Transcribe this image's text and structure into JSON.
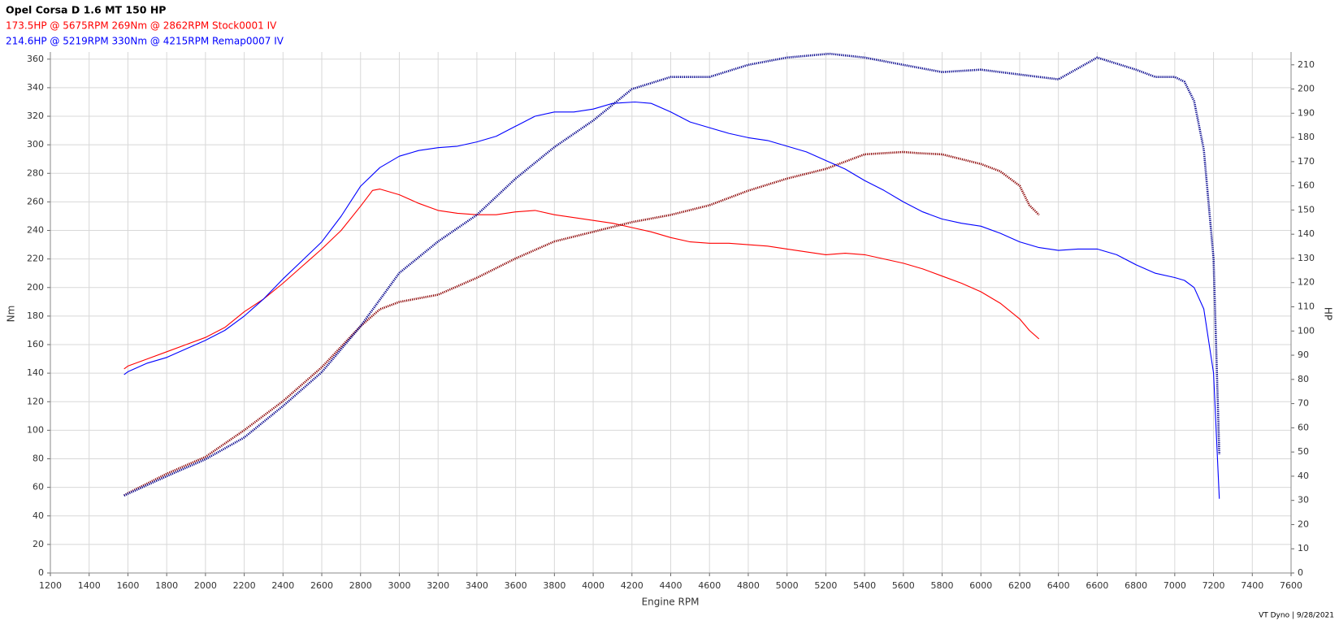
{
  "chart_data": {
    "type": "line",
    "title": "Opel Corsa D 1.6 MT 150 HP",
    "subtitle_lines": [
      {
        "text": "173.5HP @  5675RPM  269Nm @ 2862RPM  Stock0001 IV",
        "color": "#ff0000"
      },
      {
        "text": "214.6HP @  5219RPM  330Nm @ 4215RPM  Remap0007 IV",
        "color": "#0000ff"
      }
    ],
    "x_label": "Engine RPM",
    "y_label": "Nm",
    "y2_label": "HP",
    "footer": "VT Dyno | 9/28/2021",
    "xlim": [
      1200,
      7600
    ],
    "xticks": [
      1200,
      1400,
      1600,
      1800,
      2000,
      2200,
      2400,
      2600,
      2800,
      3000,
      3200,
      3400,
      3600,
      3800,
      4000,
      4200,
      4400,
      4600,
      4800,
      5000,
      5200,
      5400,
      5600,
      5800,
      6000,
      6200,
      6400,
      6600,
      6800,
      7000,
      7200,
      7400,
      7600
    ],
    "ylim": [
      0,
      365
    ],
    "yticks": [
      0,
      20,
      40,
      60,
      80,
      100,
      120,
      140,
      160,
      180,
      200,
      220,
      240,
      260,
      280,
      300,
      320,
      340,
      360
    ],
    "y2lim": [
      0,
      215.3
    ],
    "y2ticks": [
      0,
      10,
      20,
      30,
      40,
      50,
      60,
      70,
      80,
      90,
      100,
      110,
      120,
      130,
      140,
      150,
      160,
      170,
      180,
      190,
      200,
      210
    ],
    "grid": true,
    "series": [
      {
        "name": "Stock0001 IV torque",
        "color": "#ff0000",
        "line_style": "solid",
        "axis": "y",
        "x": [
          1580,
          1600,
          1700,
          1800,
          1900,
          2000,
          2100,
          2200,
          2300,
          2400,
          2500,
          2600,
          2700,
          2800,
          2862,
          2900,
          3000,
          3100,
          3200,
          3300,
          3400,
          3500,
          3600,
          3700,
          3800,
          3900,
          4000,
          4100,
          4200,
          4300,
          4400,
          4500,
          4600,
          4700,
          4800,
          4900,
          5000,
          5100,
          5200,
          5300,
          5400,
          5500,
          5600,
          5700,
          5800,
          5900,
          6000,
          6100,
          6200,
          6250,
          6300
        ],
        "values": [
          143,
          145,
          150,
          155,
          160,
          165,
          172,
          183,
          192,
          203,
          215,
          227,
          240,
          257,
          268,
          269,
          265,
          259,
          254,
          252,
          251,
          251,
          253,
          254,
          251,
          249,
          247,
          245,
          242,
          239,
          235,
          232,
          231,
          231,
          230,
          229,
          227,
          225,
          223,
          224,
          223,
          220,
          217,
          213,
          208,
          203,
          197,
          189,
          178,
          170,
          164
        ]
      },
      {
        "name": "Stock0001 IV power",
        "color": "#8b0000",
        "line_style": "dotted",
        "axis": "y2",
        "x": [
          1580,
          1600,
          1800,
          2000,
          2200,
          2400,
          2600,
          2800,
          2900,
          3000,
          3200,
          3400,
          3600,
          3800,
          4000,
          4200,
          4400,
          4600,
          4800,
          5000,
          5200,
          5400,
          5600,
          5675,
          5800,
          6000,
          6100,
          6200,
          6250,
          6300
        ],
        "values": [
          32,
          33,
          41,
          48,
          59,
          71,
          85,
          102,
          109,
          112,
          115,
          122,
          130,
          137,
          141,
          145,
          148,
          152,
          158,
          163,
          167,
          173,
          174,
          173.5,
          173,
          169,
          166,
          160,
          152,
          148
        ]
      },
      {
        "name": "Remap0007 IV torque",
        "color": "#0000ff",
        "line_style": "solid",
        "axis": "y",
        "x": [
          1580,
          1600,
          1700,
          1800,
          1900,
          2000,
          2100,
          2200,
          2300,
          2400,
          2500,
          2600,
          2700,
          2800,
          2900,
          3000,
          3100,
          3200,
          3300,
          3400,
          3500,
          3600,
          3700,
          3800,
          3900,
          4000,
          4100,
          4215,
          4300,
          4400,
          4500,
          4600,
          4700,
          4800,
          4900,
          5000,
          5100,
          5200,
          5300,
          5400,
          5500,
          5600,
          5700,
          5800,
          5900,
          6000,
          6100,
          6200,
          6300,
          6400,
          6500,
          6600,
          6700,
          6800,
          6900,
          7000,
          7050,
          7100,
          7150,
          7200,
          7230
        ],
        "values": [
          139,
          141,
          147,
          151,
          157,
          163,
          170,
          180,
          192,
          206,
          219,
          232,
          250,
          271,
          284,
          292,
          296,
          298,
          299,
          302,
          306,
          313,
          320,
          323,
          323,
          325,
          329,
          330,
          329,
          323,
          316,
          312,
          308,
          305,
          303,
          299,
          295,
          289,
          283,
          275,
          268,
          260,
          253,
          248,
          245,
          243,
          238,
          232,
          228,
          226,
          227,
          227,
          223,
          216,
          210,
          207,
          205,
          200,
          185,
          140,
          52
        ]
      },
      {
        "name": "Remap0007 IV power",
        "color": "#00008b",
        "line_style": "dotted",
        "axis": "y2",
        "x": [
          1580,
          1800,
          2000,
          2200,
          2400,
          2600,
          2800,
          3000,
          3200,
          3400,
          3600,
          3800,
          4000,
          4200,
          4400,
          4600,
          4800,
          5000,
          5219,
          5400,
          5600,
          5800,
          6000,
          6200,
          6400,
          6600,
          6800,
          6900,
          7000,
          7050,
          7100,
          7150,
          7200,
          7230
        ],
        "values": [
          32,
          40,
          47,
          56,
          69,
          83,
          102,
          124,
          137,
          148,
          163,
          176,
          187,
          200,
          205,
          205,
          210,
          213,
          214.6,
          213,
          210,
          207,
          208,
          206,
          204,
          213,
          208,
          205,
          205,
          203,
          195,
          175,
          130,
          49
        ]
      }
    ]
  }
}
